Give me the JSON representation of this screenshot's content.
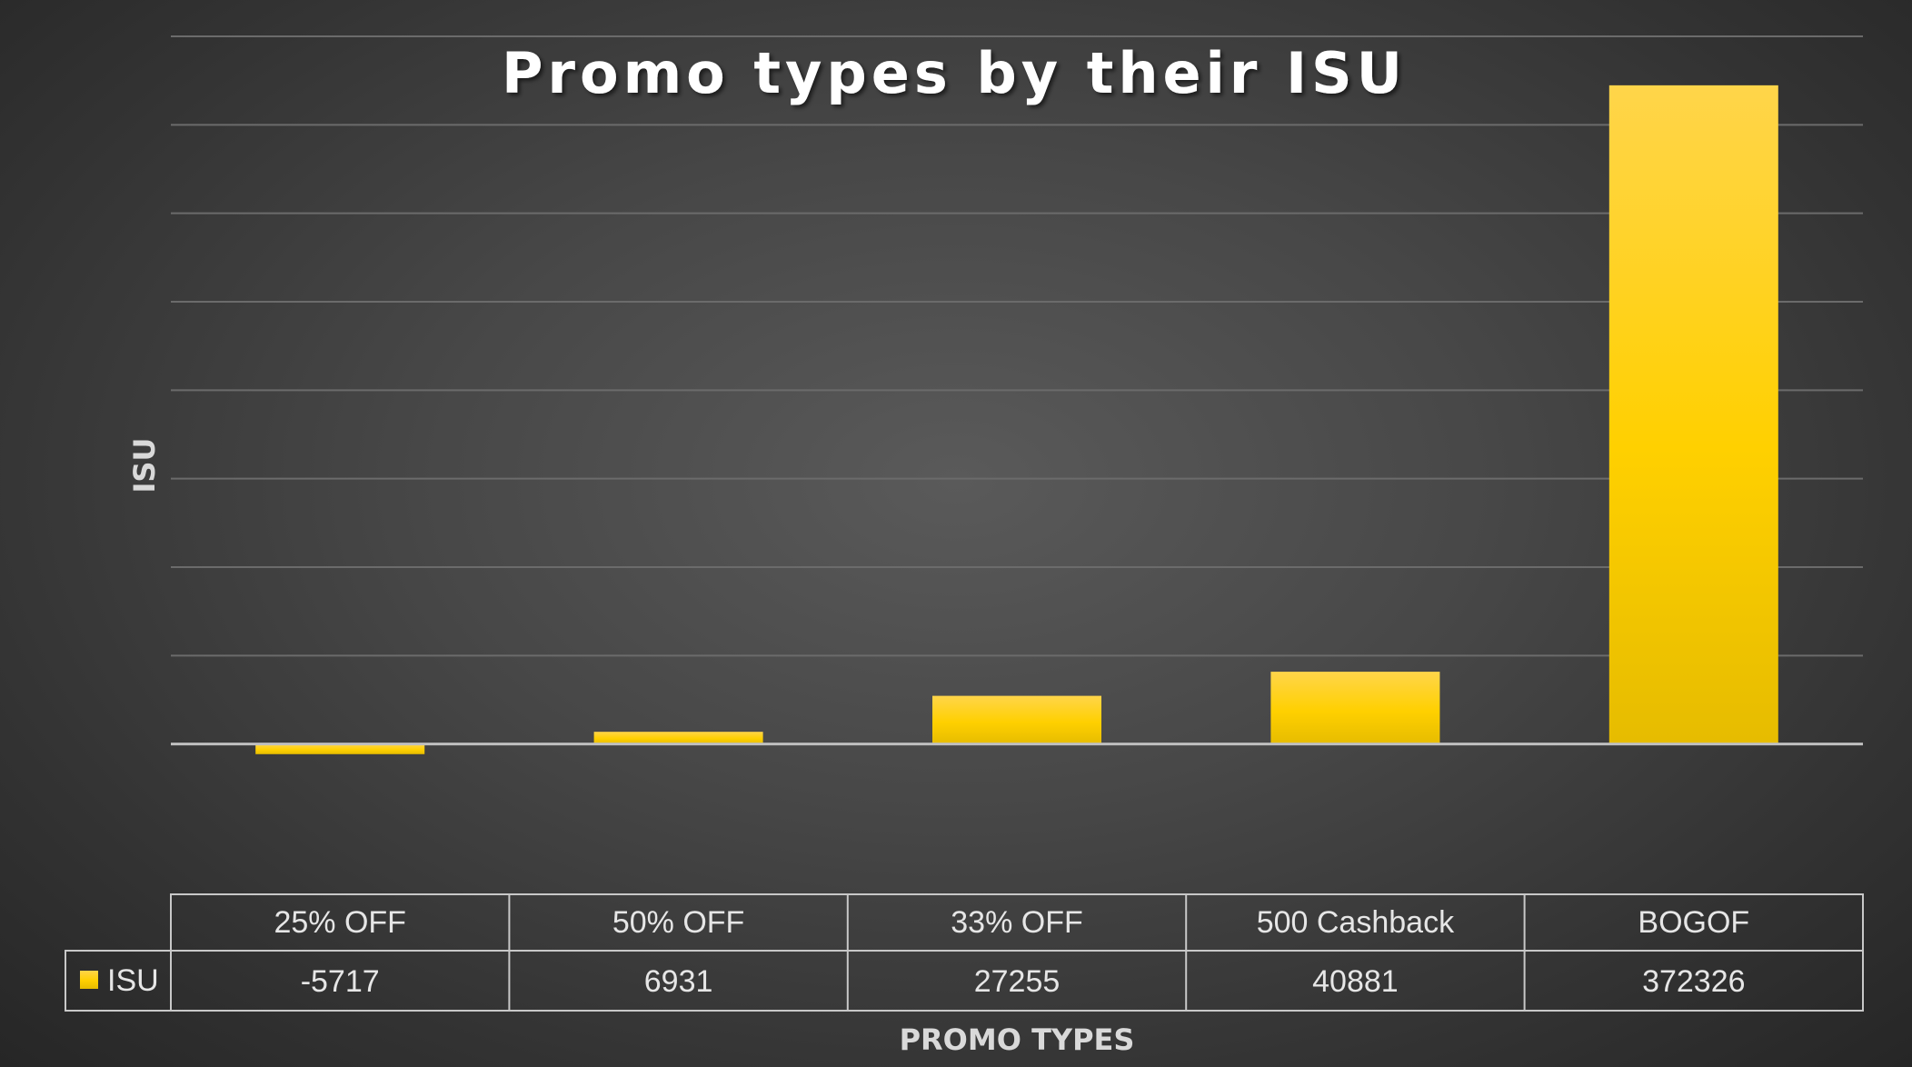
{
  "chart_data": {
    "type": "bar",
    "title": "Promo types by their ISU",
    "xlabel": "PROMO TYPES",
    "ylabel": "ISU",
    "categories": [
      "25% OFF",
      "50% OFF",
      "33% OFF",
      "500 Cashback",
      "BOGOF"
    ],
    "series": [
      {
        "name": "ISU",
        "values": [
          -5717,
          6931,
          27255,
          40881,
          372326
        ]
      }
    ],
    "ylim": [
      -50000,
      400000
    ],
    "grid": true,
    "legend": "data-table",
    "data_table": true,
    "colors": {
      "bar": "#ffd000",
      "bar_top": "#ffd54a",
      "bar_bottom": "#e6bc00"
    }
  }
}
